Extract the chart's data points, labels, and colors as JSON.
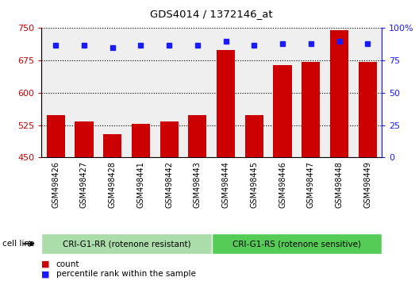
{
  "title": "GDS4014 / 1372146_at",
  "samples": [
    "GSM498426",
    "GSM498427",
    "GSM498428",
    "GSM498441",
    "GSM498442",
    "GSM498443",
    "GSM498444",
    "GSM498445",
    "GSM498446",
    "GSM498447",
    "GSM498448",
    "GSM498449"
  ],
  "counts": [
    548,
    533,
    503,
    528,
    533,
    548,
    700,
    548,
    665,
    671,
    745,
    671
  ],
  "percentile_ranks": [
    87,
    87,
    85,
    87,
    87,
    87,
    90,
    87,
    88,
    88,
    90,
    88
  ],
  "ylim_left": [
    450,
    750
  ],
  "yticks_left": [
    450,
    525,
    600,
    675,
    750
  ],
  "ylim_right": [
    0,
    100
  ],
  "yticks_right": [
    0,
    25,
    50,
    75,
    100
  ],
  "bar_color": "#cc0000",
  "dot_color": "#1a1aff",
  "group1_label": "CRI-G1-RR (rotenone resistant)",
  "group2_label": "CRI-G1-RS (rotenone sensitive)",
  "group1_color": "#aaddaa",
  "group2_color": "#55cc55",
  "cell_line_label": "cell line",
  "legend_count": "count",
  "legend_percentile": "percentile rank within the sample",
  "n_group1": 6,
  "n_group2": 6,
  "plot_bg": "#ffffff",
  "bar_bg": "#e0e0e0",
  "ylabel_left_color": "#cc0000",
  "ylabel_right_color": "#1a1aff"
}
